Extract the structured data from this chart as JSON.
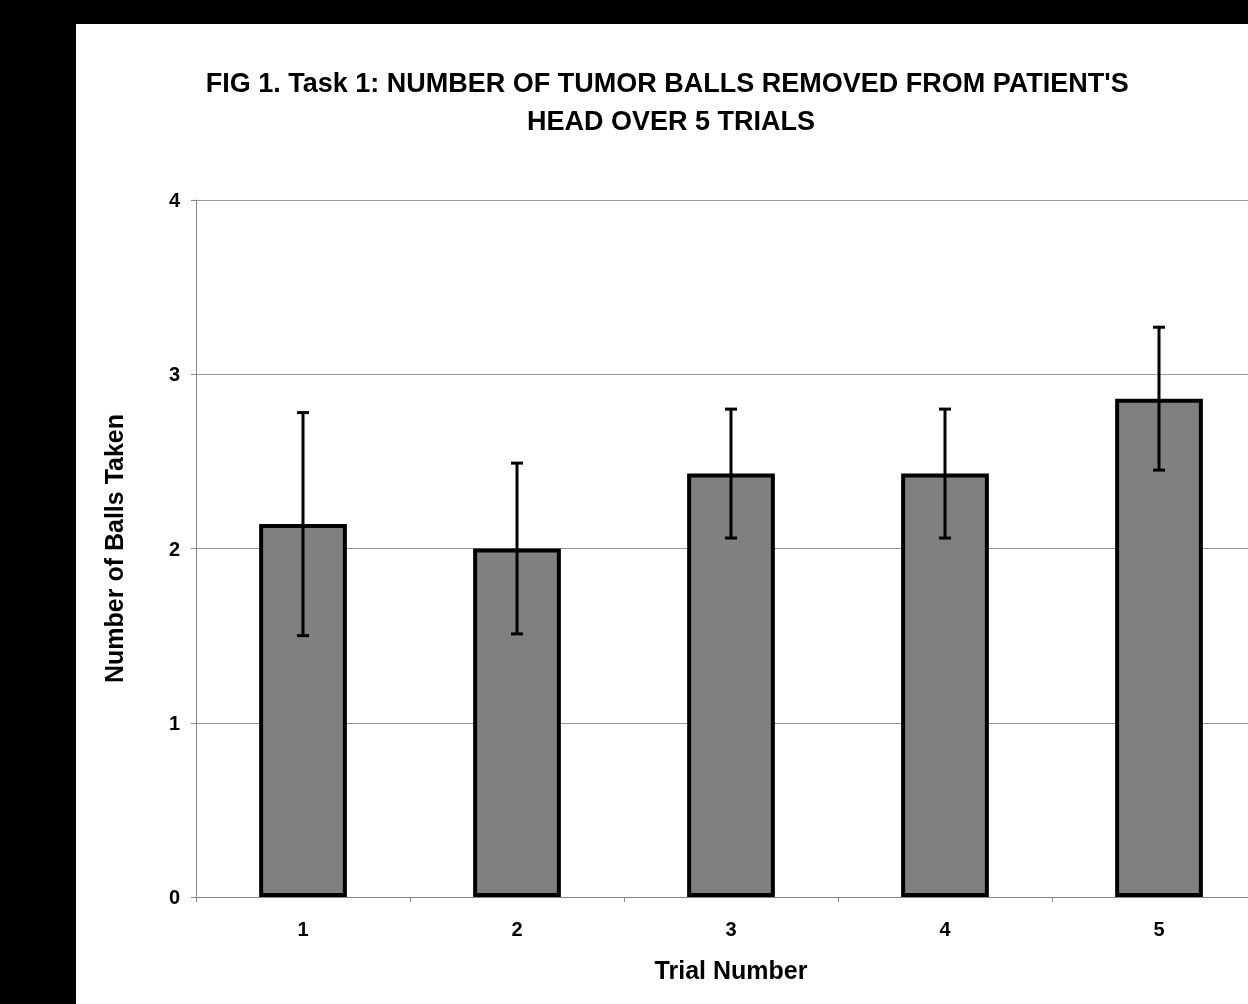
{
  "chart_data": {
    "type": "bar",
    "title": "FIG 1. Task 1: NUMBER OF TUMOR BALLS REMOVED FROM PATIENT'S HEAD OVER 5 TRIALS",
    "xlabel": "Trial Number",
    "ylabel": "Number of Balls Taken",
    "categories": [
      "1",
      "2",
      "3",
      "4",
      "5"
    ],
    "values": [
      2.14,
      2.0,
      2.43,
      2.43,
      2.86
    ],
    "errors": [
      0.64,
      0.49,
      0.37,
      0.37,
      0.41
    ],
    "color": "#808080",
    "ylim": [
      0,
      4
    ],
    "yticks": [
      0,
      1,
      2,
      3,
      4
    ],
    "grid": "y"
  }
}
